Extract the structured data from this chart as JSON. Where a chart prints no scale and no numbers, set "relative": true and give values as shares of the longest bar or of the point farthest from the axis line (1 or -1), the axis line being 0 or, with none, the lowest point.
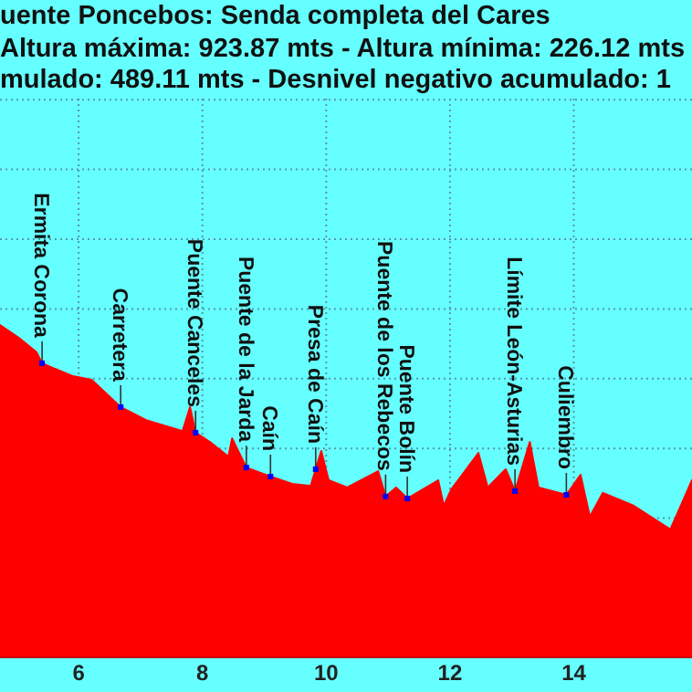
{
  "chart_data": {
    "type": "area",
    "title": "uente Poncebos: Senda completa del Cares",
    "subtitle": "Altura máxima: 923.87 mts - Altura mínima: 226.12 mts\nmulado: 489.11 mts - Desnivel negativo acumulado: 1",
    "relative": true,
    "grid": true,
    "xlim": [
      4.73,
      15.91
    ],
    "xticks": [
      6,
      8,
      10,
      12,
      14
    ],
    "x": [
      4.73,
      5.03,
      5.32,
      5.41,
      5.62,
      5.91,
      6.21,
      6.68,
      7.09,
      7.68,
      7.8,
      7.89,
      8.12,
      8.42,
      8.48,
      8.71,
      9.1,
      9.45,
      9.75,
      9.83,
      9.92,
      10.04,
      10.34,
      10.84,
      10.96,
      11.13,
      11.31,
      11.81,
      11.9,
      12.02,
      12.46,
      12.61,
      12.9,
      13.05,
      13.29,
      13.43,
      13.88,
      14.11,
      14.26,
      14.47,
      14.97,
      15.56,
      15.73,
      15.91
    ],
    "series": [
      {
        "color": "#ff0000",
        "values": [
          1.0,
          0.962,
          0.918,
          0.885,
          0.868,
          0.846,
          0.835,
          0.753,
          0.714,
          0.681,
          0.753,
          0.676,
          0.648,
          0.604,
          0.659,
          0.571,
          0.544,
          0.522,
          0.516,
          0.566,
          0.621,
          0.533,
          0.511,
          0.56,
          0.484,
          0.511,
          0.478,
          0.533,
          0.456,
          0.505,
          0.615,
          0.511,
          0.566,
          0.5,
          0.648,
          0.511,
          0.489,
          0.549,
          0.423,
          0.495,
          0.456,
          0.385,
          0.456,
          0.533
        ]
      }
    ],
    "annotations": [
      {
        "text": "Ermita Corona",
        "x": 5.41,
        "y": 0.885
      },
      {
        "text": "Carretera",
        "x": 6.68,
        "y": 0.753
      },
      {
        "text": "Puente Canceles",
        "x": 7.89,
        "y": 0.676
      },
      {
        "text": "Puente de la Jarda",
        "x": 8.71,
        "y": 0.571
      },
      {
        "text": "Caín",
        "x": 9.1,
        "y": 0.544
      },
      {
        "text": "Presa de Caín",
        "x": 9.83,
        "y": 0.566
      },
      {
        "text": "Puente de los Rebecos",
        "x": 10.96,
        "y": 0.484
      },
      {
        "text": "Puente Bolín",
        "x": 11.31,
        "y": 0.478
      },
      {
        "text": "Límite León-Asturias",
        "x": 13.05,
        "y": 0.5
      },
      {
        "text": "Culiembro",
        "x": 13.88,
        "y": 0.489
      }
    ]
  }
}
